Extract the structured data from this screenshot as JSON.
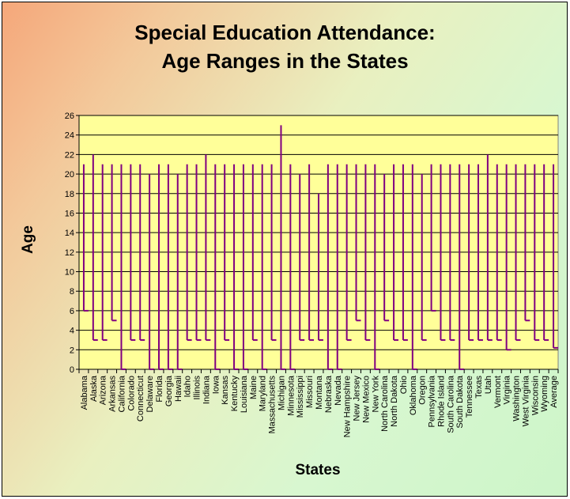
{
  "chart_data": {
    "type": "bar",
    "title": "Special Education Attendance:",
    "subtitle": "Age Ranges in the States",
    "xlabel": "States",
    "ylabel": "Age",
    "ylim": [
      0,
      26
    ],
    "yticks": [
      0,
      2,
      4,
      6,
      8,
      10,
      12,
      14,
      16,
      18,
      20,
      22,
      24,
      26
    ],
    "grid": true,
    "legend": "none",
    "categories": [
      "Alabama",
      "Alaska",
      "Arizona",
      "Arkansas",
      "California",
      "Colorado",
      "Connecticut",
      "Delaware",
      "Florida",
      "Georgia",
      "Hawaii",
      "Idaho",
      "Illinois",
      "Indiana",
      "Iowa",
      "Kansas",
      "Kentucky",
      "Louisiana",
      "Maine",
      "Maryland",
      "Massachusetts",
      "Michigan",
      "Minnesota",
      "Mississippi",
      "Missouri",
      "Montana",
      "Nebraska",
      "Nevada",
      "New Hampshire",
      "New Jersey",
      "New Mexico",
      "New York",
      "North Carolina",
      "North Dakota",
      "Ohio",
      "Oklahoma",
      "Oregon",
      "Pennsylvania",
      "Rhode Island",
      "South Carolina",
      "South Dakota",
      "Tennessee",
      "Texas",
      "Utah",
      "Vermont",
      "Virginia",
      "Washington",
      "West Virginia",
      "Wisconsin",
      "Wyoming",
      "Average"
    ],
    "series": [
      {
        "name": "",
        "low": [
          6,
          3,
          3,
          5,
          0,
          3,
          3,
          0,
          0,
          0,
          0,
          3,
          3,
          3,
          0,
          3,
          0,
          0,
          3,
          0,
          3,
          0,
          0,
          3,
          3,
          3,
          0,
          0,
          3,
          5,
          3,
          0,
          5,
          3,
          3,
          0,
          3,
          6,
          3,
          3,
          0,
          3,
          3,
          3,
          3,
          2,
          3,
          5,
          3,
          3,
          2.2
        ]
      },
      {
        "name": "",
        "high": [
          21,
          22,
          21,
          21,
          21,
          21,
          21,
          20,
          21,
          21,
          20,
          21,
          21,
          22,
          21,
          21,
          21,
          21,
          21,
          21,
          21,
          25,
          21,
          20,
          21,
          18,
          21,
          21,
          21,
          21,
          21,
          21,
          20,
          21,
          21,
          21,
          20,
          21,
          21,
          21,
          21,
          21,
          21,
          22,
          21,
          21,
          21,
          21,
          21,
          21,
          21
        ]
      }
    ],
    "colors": {
      "plot_bg": "#ffff99",
      "bar": "#800080",
      "grid": "#000000"
    }
  }
}
